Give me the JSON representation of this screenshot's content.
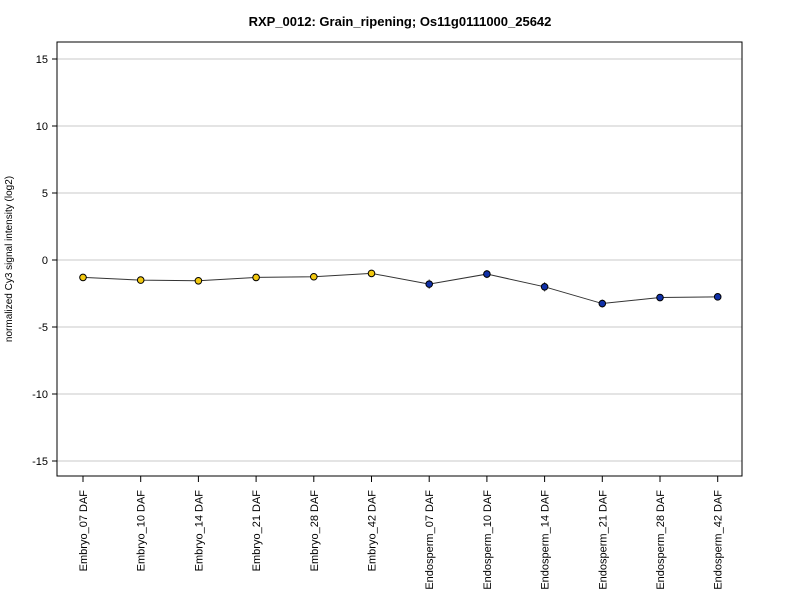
{
  "chart_data": {
    "type": "line",
    "title": "RXP_0012: Grain_ripening; Os11g0111000_25642",
    "xlabel": "",
    "ylabel": "normalized Cy3 signal intensity (log2)",
    "ylim": [
      -16,
      16
    ],
    "yticks": [
      15,
      10,
      5,
      0,
      -5,
      -10,
      -15
    ],
    "ytick_labels": [
      "15",
      "10",
      "5",
      "0",
      "-5",
      "-10",
      "-15"
    ],
    "grid": "horizontal at y ticks",
    "legend": "none",
    "categories": [
      "Embryo_07 DAF",
      "Embryo_10 DAF",
      "Embryo_14 DAF",
      "Embryo_21 DAF",
      "Embryo_28 DAF",
      "Embryo_42 DAF",
      "Endosperm_07 DAF",
      "Endosperm_10 DAF",
      "Endosperm_14 DAF",
      "Endosperm_21 DAF",
      "Endosperm_28 DAF",
      "Endosperm_42 DAF"
    ],
    "series": [
      {
        "values": [
          -1.3,
          -1.5,
          -1.55,
          -1.3,
          -1.25,
          -1.0,
          -1.8,
          -1.05,
          -2.0,
          -3.25,
          -2.8,
          -2.75
        ],
        "error": [
          0.15,
          0.2,
          0.15,
          0.15,
          0.15,
          0.15,
          0.35,
          0.3,
          0.35,
          0.3,
          0.15,
          0.1
        ],
        "point_colors": [
          "#f2c80f",
          "#f2c80f",
          "#f2c80f",
          "#f2c80f",
          "#f2c80f",
          "#f2c80f",
          "#1030a8",
          "#1030a8",
          "#1030a8",
          "#1030a8",
          "#1030a8",
          "#1030a8"
        ]
      }
    ],
    "colors": {
      "embryo": "#f2c80f",
      "endosperm": "#1030a8",
      "line": "#333333",
      "grid": "#c8c8c8"
    }
  }
}
